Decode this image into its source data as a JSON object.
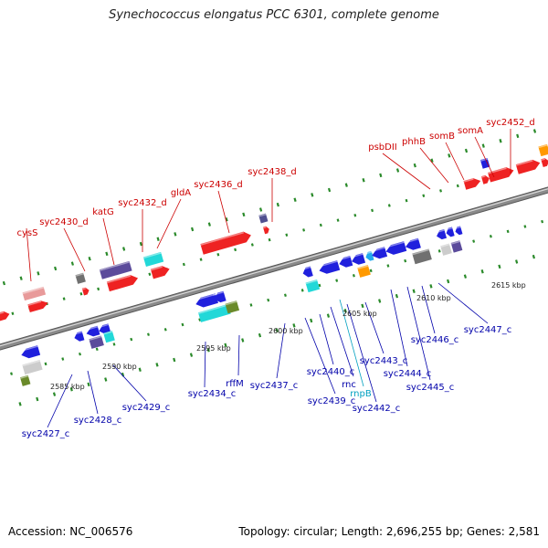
{
  "map": {
    "title": "Synechococcus elongatus PCC 6301, complete genome",
    "accession": "Accession: NC_006576",
    "topology": "Topology: circular; Length: 2,696,255 bp; Genes: 2,581",
    "colors": {
      "backbone": "#8a8a8a",
      "forward_label": "#cc0000",
      "reverse_label": "#0000aa",
      "rna_label": "#00a0c0",
      "tick": "#2a8a2a"
    },
    "kbp_labels": [
      "2585 kbp",
      "2590 kbp",
      "2595 kbp",
      "2600 kbp",
      "2605 kbp",
      "2610 kbp",
      "2615 kbp"
    ],
    "forward_genes": [
      {
        "name": "cysS"
      },
      {
        "name": "syc2430_d"
      },
      {
        "name": "katG"
      },
      {
        "name": "syc2432_d"
      },
      {
        "name": "gldA"
      },
      {
        "name": "syc2436_d"
      },
      {
        "name": "syc2438_d"
      },
      {
        "name": "psbDII"
      },
      {
        "name": "phhB"
      },
      {
        "name": "somB"
      },
      {
        "name": "somA"
      },
      {
        "name": "syc2452_d"
      }
    ],
    "reverse_genes": [
      {
        "name": "syc2427_c"
      },
      {
        "name": "syc2428_c"
      },
      {
        "name": "syc2429_c"
      },
      {
        "name": "syc2434_c"
      },
      {
        "name": "rffM"
      },
      {
        "name": "syc2437_c"
      },
      {
        "name": "syc2439_c"
      },
      {
        "name": "syc2440_c"
      },
      {
        "name": "rnc"
      },
      {
        "name": "rnpB"
      },
      {
        "name": "syc2442_c"
      },
      {
        "name": "syc2443_c"
      },
      {
        "name": "syc2444_c"
      },
      {
        "name": "syc2445_c"
      },
      {
        "name": "syc2446_c"
      },
      {
        "name": "syc2447_c"
      }
    ]
  }
}
